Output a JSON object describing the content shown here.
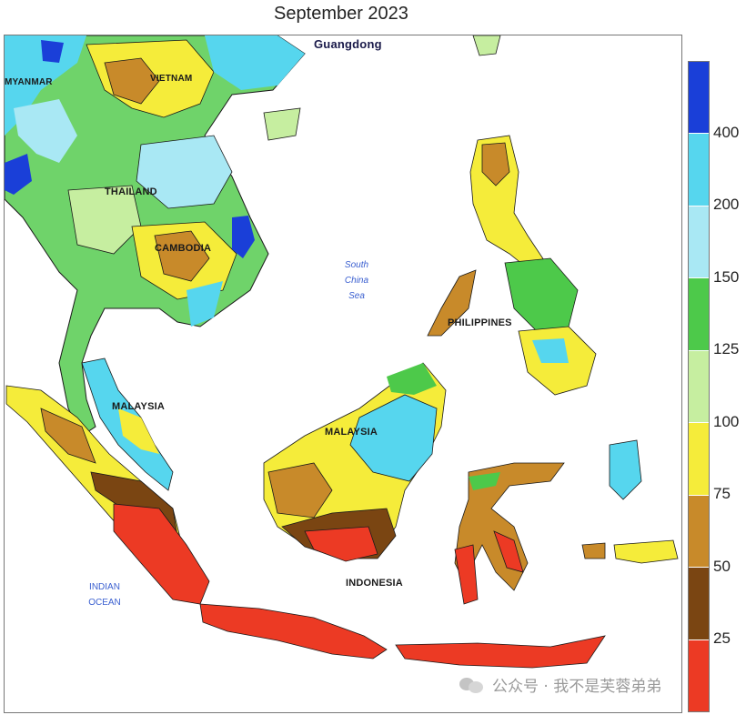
{
  "title": "September 2023",
  "labels": {
    "guangdong": "Guangdong",
    "myanmar": "MYANMAR",
    "vietnam": "VIETNAM",
    "thailand": "THAILAND",
    "cambodia": "CAMBODIA",
    "south_china_sea": [
      "South",
      "China",
      "Sea"
    ],
    "philippines": "PHILIPPINES",
    "malaysia_west": "MALAYSIA",
    "malaysia_east": "MALAYSIA",
    "indonesia": "INDONESIA",
    "indian_ocean": [
      "INDIAN",
      "OCEAN"
    ]
  },
  "legend": {
    "colors": [
      "#1a3fd8",
      "#56d6ee",
      "#a9e8f4",
      "#4dc94a",
      "#c6eea0",
      "#f5ec3a",
      "#c88a2a",
      "#7a4512",
      "#ec3a24"
    ],
    "ticks": [
      "400",
      "200",
      "150",
      "125",
      "100",
      "75",
      "50",
      "25"
    ]
  },
  "watermark": "公众号 · 我不是芙蓉弟弟"
}
